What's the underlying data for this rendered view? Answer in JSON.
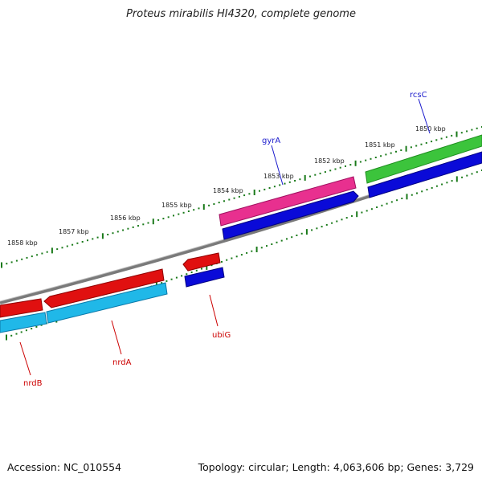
{
  "title": "Proteus mirabilis HI4320, complete genome",
  "footer": {
    "accession": "Accession: NC_010554",
    "summary": "Topology: circular; Length: 4,063,606 bp; Genes: 3,729"
  },
  "colors": {
    "backbone": "#808080",
    "tick": "#1a7a1a",
    "gene_label_red": "#cc0000",
    "gene_label_blue": "#1a1acc"
  },
  "ticks": [
    {
      "label": "1850 kbp"
    },
    {
      "label": "1851 kbp"
    },
    {
      "label": "1852 kbp"
    },
    {
      "label": "1853 kbp"
    },
    {
      "label": "1854 kbp"
    },
    {
      "label": "1855 kbp"
    },
    {
      "label": "1856 kbp"
    },
    {
      "label": "1857 kbp"
    },
    {
      "label": "1858 kbp"
    }
  ],
  "genes": [
    {
      "name": "rcsC",
      "strand": "plus"
    },
    {
      "name": "gyrA",
      "strand": "plus"
    },
    {
      "name": "ubiG",
      "strand": "minus"
    },
    {
      "name": "nrdA",
      "strand": "minus"
    },
    {
      "name": "nrdB",
      "strand": "minus"
    }
  ]
}
